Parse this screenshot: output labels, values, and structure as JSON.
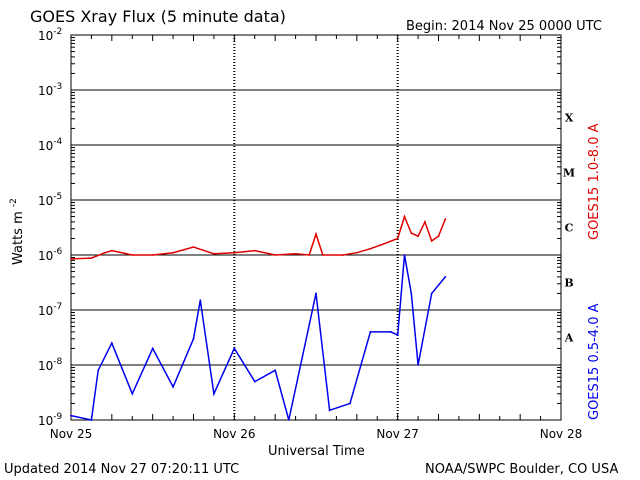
{
  "title": "GOES Xray Flux (5 minute data)",
  "begin": "Begin:  2014 Nov 25 0000 UTC",
  "updated": "Updated 2014 Nov 27 07:20:11 UTC",
  "source": "NOAA/SWPC Boulder, CO USA",
  "colors": {
    "long": "#e00000",
    "short": "#0000ee",
    "grid": "#000000"
  },
  "chart_data": {
    "type": "line",
    "title": "GOES Xray Flux (5 minute data)",
    "xlabel": "Universal Time",
    "ylabel": "Watts m",
    "ylabel_sup": "-2",
    "y_scale": "log",
    "ylim": [
      1e-09,
      0.01
    ],
    "xlim": [
      "2014-11-25 00:00",
      "2014-11-28 00:00"
    ],
    "x_ticks": [
      "Nov 25",
      "Nov 26",
      "Nov 27",
      "Nov 28"
    ],
    "y_ticks": [
      {
        "base": "10",
        "exp": "-2"
      },
      {
        "base": "10",
        "exp": "-3"
      },
      {
        "base": "10",
        "exp": "-4"
      },
      {
        "base": "10",
        "exp": "-5"
      },
      {
        "base": "10",
        "exp": "-6"
      },
      {
        "base": "10",
        "exp": "-7"
      },
      {
        "base": "10",
        "exp": "-8"
      },
      {
        "base": "10",
        "exp": "-9"
      }
    ],
    "flare_classes": [
      "X",
      "M",
      "C",
      "B",
      "A"
    ],
    "grid": true,
    "series": [
      {
        "name": "GOES15 1.0-8.0 A",
        "color": "#e00000",
        "points": [
          [
            "2014-11-25 00:00",
            8.5e-07
          ],
          [
            "2014-11-25 03:00",
            8.8e-07
          ],
          [
            "2014-11-25 05:00",
            1.1e-06
          ],
          [
            "2014-11-25 06:00",
            1.2e-06
          ],
          [
            "2014-11-25 09:00",
            1e-06
          ],
          [
            "2014-11-25 12:00",
            1e-06
          ],
          [
            "2014-11-25 15:00",
            1.1e-06
          ],
          [
            "2014-11-25 18:00",
            1.4e-06
          ],
          [
            "2014-11-25 21:00",
            1.05e-06
          ],
          [
            "2014-11-26 00:00",
            1.1e-06
          ],
          [
            "2014-11-26 03:00",
            1.2e-06
          ],
          [
            "2014-11-26 06:00",
            1e-06
          ],
          [
            "2014-11-26 09:00",
            1.05e-06
          ],
          [
            "2014-11-26 11:00",
            1e-06
          ],
          [
            "2014-11-26 12:00",
            2.4e-06
          ],
          [
            "2014-11-26 13:00",
            1e-06
          ],
          [
            "2014-11-26 16:00",
            1e-06
          ],
          [
            "2014-11-26 18:00",
            1.1e-06
          ],
          [
            "2014-11-26 20:00",
            1.3e-06
          ],
          [
            "2014-11-26 22:00",
            1.6e-06
          ],
          [
            "2014-11-27 00:00",
            2e-06
          ],
          [
            "2014-11-27 01:00",
            5e-06
          ],
          [
            "2014-11-27 02:00",
            2.5e-06
          ],
          [
            "2014-11-27 03:00",
            2.2e-06
          ],
          [
            "2014-11-27 04:00",
            4e-06
          ],
          [
            "2014-11-27 05:00",
            1.8e-06
          ],
          [
            "2014-11-27 06:00",
            2.2e-06
          ],
          [
            "2014-11-27 07:00",
            4.5e-06
          ]
        ]
      },
      {
        "name": "GOES15 0.5-4.0 A",
        "color": "#0000ee",
        "points": [
          [
            "2014-11-25 00:00",
            1.2e-09
          ],
          [
            "2014-11-25 03:00",
            1e-09
          ],
          [
            "2014-11-25 04:00",
            8e-09
          ],
          [
            "2014-11-25 06:00",
            2.5e-08
          ],
          [
            "2014-11-25 09:00",
            3e-09
          ],
          [
            "2014-11-25 12:00",
            2e-08
          ],
          [
            "2014-11-25 15:00",
            4e-09
          ],
          [
            "2014-11-25 18:00",
            3e-08
          ],
          [
            "2014-11-25 19:00",
            1.5e-07
          ],
          [
            "2014-11-25 21:00",
            3e-09
          ],
          [
            "2014-11-26 00:00",
            2e-08
          ],
          [
            "2014-11-26 03:00",
            5e-09
          ],
          [
            "2014-11-26 06:00",
            8e-09
          ],
          [
            "2014-11-26 08:00",
            1e-09
          ],
          [
            "2014-11-26 12:00",
            2e-07
          ],
          [
            "2014-11-26 14:00",
            1.5e-09
          ],
          [
            "2014-11-26 17:00",
            2e-09
          ],
          [
            "2014-11-26 20:00",
            4e-08
          ],
          [
            "2014-11-26 23:00",
            4e-08
          ],
          [
            "2014-11-27 00:00",
            3.5e-08
          ],
          [
            "2014-11-27 01:00",
            1e-06
          ],
          [
            "2014-11-27 02:00",
            2e-07
          ],
          [
            "2014-11-27 03:00",
            1e-08
          ],
          [
            "2014-11-27 05:00",
            2e-07
          ],
          [
            "2014-11-27 07:00",
            4e-07
          ]
        ]
      }
    ]
  }
}
